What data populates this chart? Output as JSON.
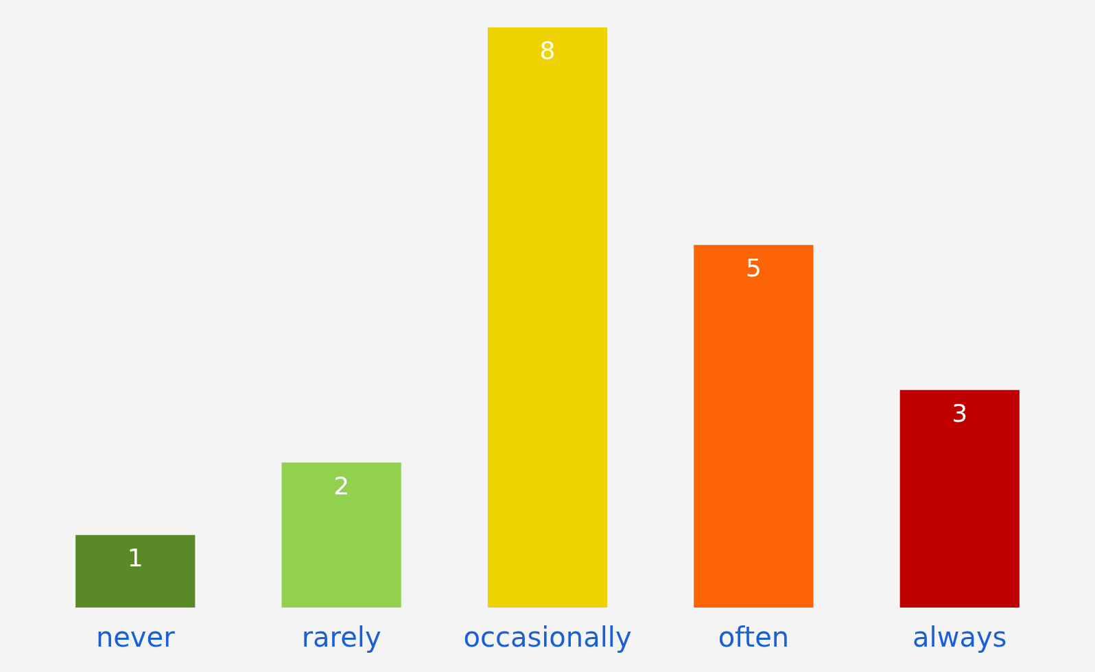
{
  "chart_data": {
    "type": "bar",
    "categories": [
      "never",
      "rarely",
      "occasionally",
      "often",
      "always"
    ],
    "values": [
      1,
      2,
      8,
      5,
      3
    ],
    "colors": [
      "#5a8a27",
      "#92d050",
      "#eed202",
      "#fb6306",
      "#c00000"
    ],
    "data_labels": true,
    "grid": false
  }
}
